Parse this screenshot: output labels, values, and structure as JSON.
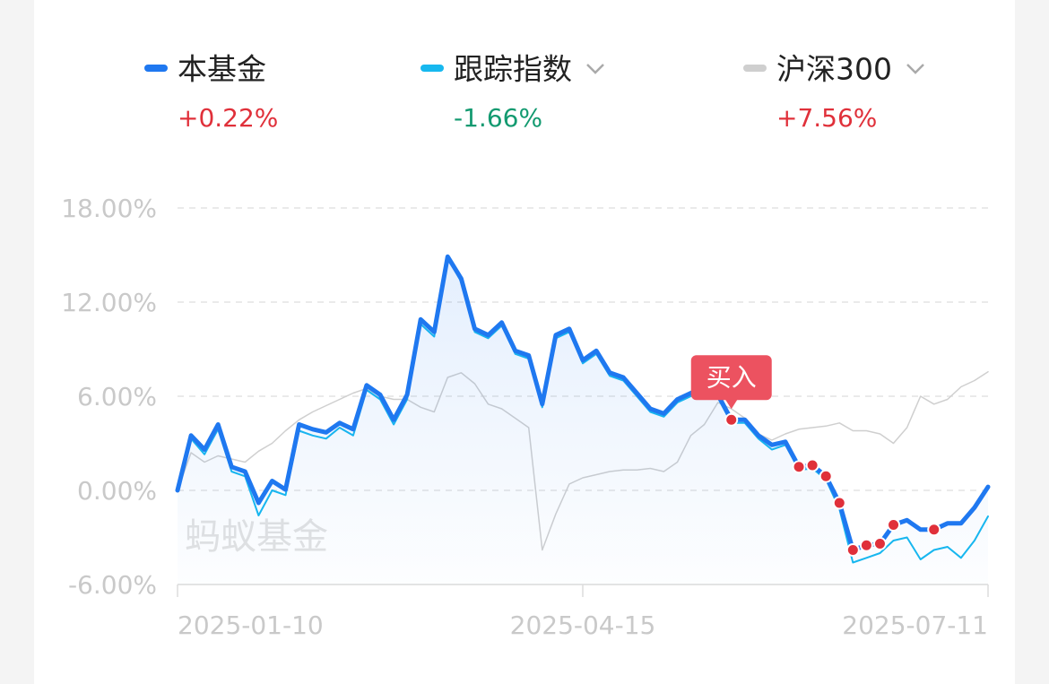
{
  "chart_data": {
    "type": "line",
    "watermark": "蚂蚁基金",
    "categories": [
      "2025-01-10",
      null,
      null,
      null,
      null,
      null,
      null,
      null,
      null,
      null,
      null,
      null,
      null,
      null,
      null,
      null,
      null,
      null,
      null,
      null,
      null,
      null,
      null,
      null,
      null,
      null,
      null,
      null,
      null,
      null,
      "2025-04-15",
      null,
      null,
      null,
      null,
      null,
      null,
      null,
      null,
      null,
      null,
      null,
      null,
      null,
      null,
      null,
      null,
      null,
      null,
      null,
      null,
      null,
      null,
      null,
      null,
      null,
      null,
      null,
      null,
      null,
      "2025-07-11"
    ],
    "series": [
      {
        "name": "沪深300",
        "color": "#cfcfcf",
        "change": 7.56,
        "change_label": "+7.56%",
        "dropdown": true,
        "values": [
          0,
          2.4,
          1.8,
          2.2,
          2.0,
          1.8,
          2.5,
          3.0,
          3.8,
          4.5,
          5.0,
          5.4,
          5.8,
          6.2,
          6.5,
          6.0,
          5.8,
          5.8,
          5.3,
          5.0,
          7.2,
          7.5,
          6.8,
          5.5,
          5.2,
          4.6,
          4.0,
          -3.8,
          -1.5,
          0.4,
          0.8,
          1.0,
          1.2,
          1.3,
          1.3,
          1.4,
          1.2,
          1.8,
          3.5,
          4.2,
          5.6,
          5.2,
          4.6,
          3.6,
          3.2,
          3.6,
          3.9,
          4.0,
          4.1,
          4.3,
          3.8,
          3.8,
          3.6,
          3.0,
          4.0,
          6.0,
          5.5,
          5.8,
          6.6,
          7.0,
          7.56
        ]
      },
      {
        "name": "跟踪指数",
        "color": "#17b8ef",
        "change": -1.66,
        "change_label": "-1.66%",
        "dropdown": true,
        "values": [
          0,
          3.3,
          2.3,
          3.9,
          1.2,
          0.9,
          -1.6,
          0.0,
          -0.3,
          3.8,
          3.5,
          3.3,
          4.0,
          3.5,
          6.4,
          5.8,
          4.2,
          5.8,
          10.6,
          9.8,
          14.8,
          13.3,
          10.1,
          9.7,
          10.5,
          8.7,
          8.4,
          5.3,
          9.7,
          10.1,
          8.1,
          8.7,
          7.3,
          7.0,
          6.0,
          5.0,
          4.7,
          5.6,
          6.0,
          6.4,
          5.9,
          4.3,
          4.3,
          3.3,
          2.6,
          2.9,
          1.3,
          1.4,
          0.7,
          -1.2,
          -4.6,
          -4.3,
          -4.0,
          -3.2,
          -3.0,
          -4.4,
          -3.8,
          -3.6,
          -4.3,
          -3.2,
          -1.66
        ]
      },
      {
        "name": "本基金",
        "color": "#1f78f0",
        "change": 0.22,
        "change_label": "+0.22%",
        "dropdown": false,
        "values": [
          0,
          3.5,
          2.6,
          4.2,
          1.5,
          1.2,
          -0.8,
          0.6,
          0.05,
          4.2,
          3.9,
          3.7,
          4.3,
          3.9,
          6.7,
          6.1,
          4.5,
          6.1,
          10.9,
          10.1,
          14.9,
          13.5,
          10.3,
          9.9,
          10.7,
          8.9,
          8.6,
          5.5,
          9.9,
          10.3,
          8.3,
          8.9,
          7.5,
          7.2,
          6.2,
          5.2,
          4.9,
          5.8,
          6.2,
          6.6,
          6.1,
          4.5,
          4.5,
          3.5,
          2.9,
          3.1,
          1.5,
          1.6,
          0.9,
          -0.8,
          -3.8,
          -3.5,
          -3.4,
          -2.2,
          -1.9,
          -2.5,
          -2.5,
          -2.1,
          -2.1,
          -1.1,
          0.22
        ],
        "buy_label": "买入",
        "buy_markers": [
          41,
          46,
          47,
          48,
          49,
          50,
          51,
          52,
          53,
          56
        ]
      }
    ],
    "legend_order": [
      2,
      1,
      0
    ],
    "ylim": [
      -6,
      18
    ],
    "yticks": [
      {
        "value": -6,
        "label": "-6.00%"
      },
      {
        "value": 0,
        "label": "0.00%"
      },
      {
        "value": 6,
        "label": "6.00%"
      },
      {
        "value": 12,
        "label": "12.00%"
      },
      {
        "value": 18,
        "label": "18.00%"
      }
    ],
    "grid": true
  }
}
